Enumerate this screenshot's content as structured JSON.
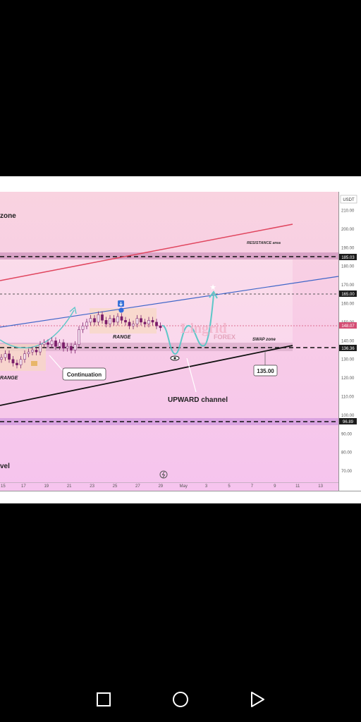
{
  "axis": {
    "currency_label": "USDT",
    "y_ticks": [
      "210.00",
      "200.00",
      "190.00",
      "180.00",
      "170.00",
      "160.00",
      "150.00",
      "140.00",
      "130.00",
      "120.00",
      "110.00",
      "100.00",
      "90.00",
      "80.00",
      "70.00"
    ],
    "x_ticks": [
      "15",
      "17",
      "19",
      "21",
      "23",
      "25",
      "27",
      "29",
      "May",
      "3",
      "5",
      "7",
      "9",
      "11",
      "13"
    ]
  },
  "price_tags": {
    "level_185": "185.03",
    "level_165": "165.00",
    "current": "148.07",
    "level_136": "136.36",
    "level_97": "96.89"
  },
  "labels": {
    "zone_top": "zone",
    "resistance": "RESISTANCE area",
    "range_left": "RANGE",
    "range_mid": "RANGE",
    "swap": "SWAP zone",
    "continuation": "Continuation",
    "target_box": "135.00",
    "upward_channel": "UPWARD channel",
    "level_bottom": "vel",
    "watermark_main": "Lingrid",
    "watermark_sub": "FOREX"
  },
  "colors": {
    "background_top": "#f9d3e0",
    "background_bottom": "#f6c4ee",
    "resistance_band": "#d9a3c6",
    "resistance_line": "#e0455e",
    "channel_upper": "#3f66c8",
    "channel_lower": "#111111",
    "projection": "#5ec7c8",
    "range_box": "#f7d9c2",
    "candle": "#7a1d6a",
    "price_tag_dark": "#1c1c1c",
    "price_tag_current": "#d44d74"
  },
  "navigation": {
    "square_icon": "recent-apps",
    "circle_icon": "home",
    "triangle_icon": "back"
  },
  "chart_data": {
    "type": "candlestick",
    "y_unit": "USDT",
    "ylim": [
      65,
      215
    ],
    "x_labels": [
      "15",
      "17",
      "19",
      "21",
      "23",
      "25",
      "27",
      "29",
      "May",
      "3",
      "5",
      "7",
      "9",
      "11",
      "13"
    ],
    "horizontal_levels": [
      185.03,
      165.0,
      136.36,
      96.89
    ],
    "current_price": 148.07,
    "target": 135.0,
    "range_zones": [
      {
        "label": "RANGE",
        "from_x": "15",
        "to_x": "19",
        "low": 128,
        "high": 138
      },
      {
        "label": "RANGE",
        "from_x": "23",
        "to_x": "28",
        "low": 145,
        "high": 158
      }
    ],
    "bands": [
      {
        "label": "RESISTANCE area",
        "low": 165,
        "high": 188
      },
      {
        "label": "SWAP zone",
        "low": 135,
        "high": 140
      }
    ],
    "trendlines": [
      {
        "name": "resistance",
        "color": "#e0455e"
      },
      {
        "name": "channel-upper",
        "color": "#3f66c8"
      },
      {
        "name": "channel-lower",
        "color": "#111111"
      }
    ],
    "close": [
      131,
      133,
      130,
      128,
      127,
      130,
      133,
      134,
      135,
      134,
      138,
      139,
      138,
      140,
      137,
      139,
      136,
      137,
      135,
      138,
      146,
      148,
      150,
      152,
      150,
      154,
      151,
      149,
      152,
      150,
      153,
      151,
      150,
      148,
      149,
      152,
      150,
      149,
      151,
      150,
      148,
      147
    ]
  }
}
